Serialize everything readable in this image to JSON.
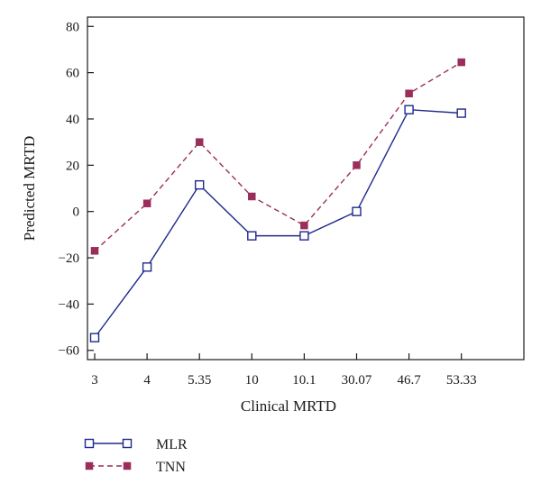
{
  "chart_data": {
    "type": "line",
    "categories": [
      "3",
      "4",
      "5.35",
      "10",
      "10.1",
      "30.07",
      "46.7",
      "53.33"
    ],
    "series": [
      {
        "name": "MLR",
        "values": [
          -54.5,
          -24,
          11.5,
          -10.5,
          -10.5,
          0,
          44,
          42.5
        ],
        "color": "#1f2a8a",
        "line_style": "solid",
        "marker": "open-square"
      },
      {
        "name": "TNN",
        "values": [
          -17,
          3.5,
          30,
          6.5,
          -6,
          20,
          51,
          64.5
        ],
        "color": "#9b2d5a",
        "line_style": "dashed",
        "marker": "filled-square"
      }
    ],
    "xlabel": "Clinical MRTD",
    "ylabel": "Predicted MRTD",
    "ylim": [
      -64,
      84
    ],
    "yticks": [
      80,
      60,
      40,
      20,
      0,
      -20,
      -40,
      -60
    ],
    "ytick_labels": [
      "80",
      "60",
      "40",
      "20",
      "0",
      "−20",
      "−40",
      "−60"
    ],
    "grid": false,
    "legend_position": "bottom-left"
  }
}
